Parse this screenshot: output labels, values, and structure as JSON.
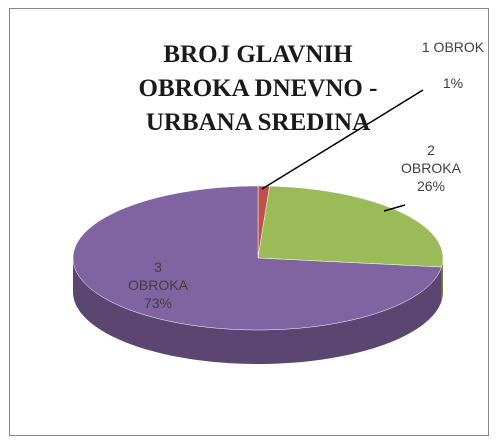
{
  "chart_data": {
    "type": "pie",
    "title": [
      "BROJ GLAVNIH",
      "OBROKA DNEVNO -",
      "URBANA SREDINA"
    ],
    "categories": [
      "1 OBROK",
      "2 OBROKA",
      "3 OBROKA"
    ],
    "values": [
      1,
      26,
      73
    ],
    "value_labels": [
      "1%",
      "26%",
      "73%"
    ],
    "colors": [
      "#c0504d",
      "#9bbb59",
      "#8064a2"
    ]
  }
}
